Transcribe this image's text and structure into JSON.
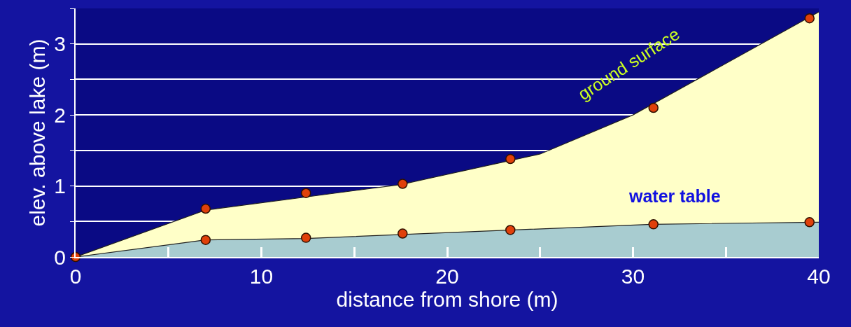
{
  "chart_data": {
    "type": "area",
    "xlabel": "distance from shore (m)",
    "ylabel": "elev. above lake (m)",
    "xlim": [
      0,
      40
    ],
    "ylim": [
      0,
      3.5
    ],
    "xticks": [
      0,
      {
        "value": 5,
        "label": null
      },
      10,
      {
        "value": 15,
        "label": null
      },
      20,
      {
        "value": 25,
        "label": null
      },
      30,
      {
        "value": 35,
        "label": null
      },
      40
    ],
    "yticks": [
      0,
      {
        "value": 0.5,
        "label": null
      },
      1,
      {
        "value": 1.5,
        "label": null
      },
      2,
      {
        "value": 2.5,
        "label": null
      },
      3,
      {
        "value": 3.5,
        "label": null
      }
    ],
    "grid": "y",
    "series": [
      {
        "color": "#ffffc8",
        "x": [
          0,
          7,
          17.5,
          25,
          30,
          40
        ],
        "values": [
          0,
          0.66,
          1.02,
          1.45,
          2.0,
          3.45
        ]
      },
      {
        "color": "#a8ccd0",
        "x": [
          0,
          7,
          12.4,
          31,
          40
        ],
        "values": [
          0,
          0.24,
          0.26,
          0.46,
          0.49
        ]
      },
      {
        "type": "scatter",
        "marker": "circle",
        "color": "#e0400a",
        "x": [
          0,
          7.0,
          12.4,
          17.6,
          23.4,
          31.1,
          39.5
        ],
        "values": [
          0,
          0.68,
          0.9,
          1.03,
          1.38,
          2.1,
          3.36
        ]
      },
      {
        "type": "scatter",
        "marker": "circle",
        "color": "#e0400a",
        "x": [
          7.0,
          12.4,
          17.6,
          23.4,
          31.1,
          39.5
        ],
        "values": [
          0.24,
          0.27,
          0.33,
          0.38,
          0.46,
          0.49
        ]
      }
    ],
    "annotations": [
      "ground surface",
      "water table"
    ]
  }
}
